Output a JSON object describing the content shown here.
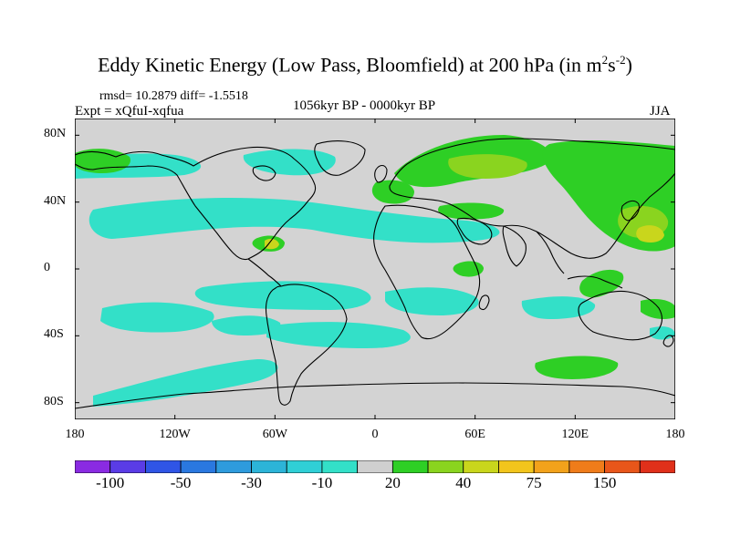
{
  "title": {
    "prefix": "Eddy Kinetic Energy (Low Pass, Bloomfield) at 200 hPa (in m",
    "sup1": "2",
    "mid": "s",
    "sup2": "-2",
    "suffix": ")"
  },
  "stats": {
    "text": "rmsd= 10.2879 diff= -1.5518"
  },
  "experiment": {
    "text": "Expt = xQfuI-xqfua"
  },
  "period": {
    "text": "1056kyr BP - 0000kyr BP"
  },
  "season": {
    "text": "JJA"
  },
  "axes": {
    "lat_labels": [
      "80N",
      "40N",
      "0",
      "40S",
      "80S"
    ],
    "lat_values": [
      80,
      40,
      0,
      -40,
      -80
    ],
    "lon_labels": [
      "180",
      "120W",
      "60W",
      "0",
      "60E",
      "120E",
      "180"
    ],
    "lon_values": [
      -180,
      -120,
      -60,
      0,
      60,
      120,
      180
    ],
    "lat_range": [
      -90,
      90
    ],
    "lon_range": [
      -180,
      180
    ]
  },
  "colorbar": {
    "labels": [
      "-100",
      "-50",
      "-30",
      "-10",
      "20",
      "40",
      "75",
      "150"
    ],
    "label_boundaries": [
      1,
      3,
      5,
      7,
      9,
      11,
      13,
      15
    ],
    "colors": [
      "#8a2be2",
      "#5a3ce6",
      "#2f55e6",
      "#2a78e0",
      "#2e9bdd",
      "#2cb4d8",
      "#2fcfd6",
      "#33e0c8",
      "#cfcfcf",
      "#2ecf25",
      "#8ad41f",
      "#c9d61c",
      "#f2c51c",
      "#f2a21b",
      "#ef7c1a",
      "#e8561a",
      "#e0301a"
    ]
  },
  "map_colors": {
    "ocean_background": "#d3d3d3",
    "coastline": "#000000",
    "cyan": "#33e0c8",
    "teal": "#2fcfd6",
    "green": "#2ecf25",
    "lightgreen": "#8ad41f",
    "yellowgreen": "#c9d61c"
  }
}
